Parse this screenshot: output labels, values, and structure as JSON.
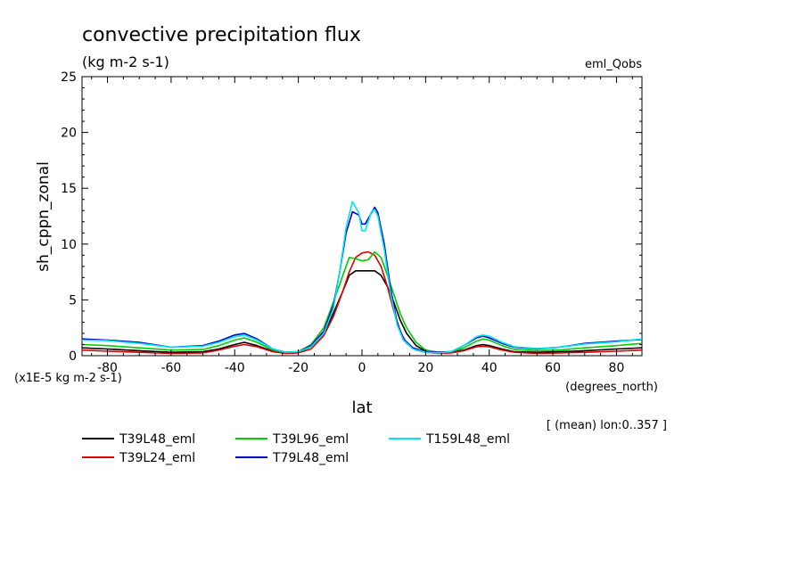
{
  "chart_data": {
    "type": "line",
    "title": "convective precipitation flux",
    "subtitle": "(kg m-2 s-1)",
    "experiment_label": "eml_Qobs",
    "ylabel": "sh_cppn_zonal",
    "xlabel": "lat",
    "x_units": "(degrees_north)",
    "y_scale_note": "(x1E-5 kg m-2 s-1)",
    "averaging_note": "[ (mean) lon:0..357 ]",
    "xlim": [
      -88,
      88
    ],
    "ylim": [
      0,
      25
    ],
    "x_ticks": [
      -80,
      -60,
      -40,
      -20,
      0,
      20,
      40,
      60,
      80
    ],
    "y_ticks": [
      0,
      5,
      10,
      15,
      20,
      25
    ],
    "x_tick_labels": [
      "-80",
      "-60",
      "-40",
      "-20",
      "0",
      "20",
      "40",
      "60",
      "80"
    ],
    "y_tick_labels": [
      "0",
      "5",
      "10",
      "15",
      "20",
      "25"
    ],
    "grid": false,
    "legend_position": "bottom",
    "series": [
      {
        "name": "T39L48_eml",
        "color": "#000000",
        "points": [
          [
            -88,
            0.7
          ],
          [
            -80,
            0.6
          ],
          [
            -70,
            0.45
          ],
          [
            -60,
            0.3
          ],
          [
            -50,
            0.35
          ],
          [
            -45,
            0.6
          ],
          [
            -40,
            1.0
          ],
          [
            -37,
            1.2
          ],
          [
            -33,
            0.9
          ],
          [
            -28,
            0.4
          ],
          [
            -24,
            0.25
          ],
          [
            -20,
            0.3
          ],
          [
            -16,
            0.8
          ],
          [
            -12,
            2.0
          ],
          [
            -9,
            3.8
          ],
          [
            -6,
            5.8
          ],
          [
            -4,
            7.2
          ],
          [
            -2,
            7.6
          ],
          [
            0,
            7.6
          ],
          [
            2,
            7.6
          ],
          [
            4,
            7.6
          ],
          [
            6,
            7.2
          ],
          [
            8,
            6.2
          ],
          [
            10,
            4.8
          ],
          [
            12,
            3.2
          ],
          [
            14,
            2.0
          ],
          [
            17,
            0.9
          ],
          [
            20,
            0.4
          ],
          [
            24,
            0.25
          ],
          [
            28,
            0.3
          ],
          [
            32,
            0.5
          ],
          [
            36,
            0.9
          ],
          [
            38,
            1.0
          ],
          [
            40,
            0.9
          ],
          [
            44,
            0.6
          ],
          [
            48,
            0.35
          ],
          [
            55,
            0.3
          ],
          [
            62,
            0.35
          ],
          [
            70,
            0.45
          ],
          [
            80,
            0.6
          ],
          [
            88,
            0.7
          ]
        ]
      },
      {
        "name": "T39L24_eml",
        "color": "#dd0000",
        "points": [
          [
            -88,
            0.5
          ],
          [
            -80,
            0.4
          ],
          [
            -70,
            0.3
          ],
          [
            -60,
            0.2
          ],
          [
            -50,
            0.25
          ],
          [
            -45,
            0.5
          ],
          [
            -40,
            0.85
          ],
          [
            -37,
            1.0
          ],
          [
            -33,
            0.8
          ],
          [
            -28,
            0.35
          ],
          [
            -24,
            0.2
          ],
          [
            -20,
            0.25
          ],
          [
            -16,
            0.6
          ],
          [
            -12,
            1.8
          ],
          [
            -9,
            3.5
          ],
          [
            -6,
            5.8
          ],
          [
            -4,
            7.5
          ],
          [
            -2,
            8.8
          ],
          [
            0,
            9.2
          ],
          [
            2,
            9.3
          ],
          [
            4,
            9.0
          ],
          [
            6,
            8.0
          ],
          [
            8,
            6.2
          ],
          [
            10,
            4.0
          ],
          [
            12,
            2.2
          ],
          [
            14,
            1.1
          ],
          [
            17,
            0.5
          ],
          [
            20,
            0.3
          ],
          [
            24,
            0.2
          ],
          [
            28,
            0.25
          ],
          [
            32,
            0.45
          ],
          [
            36,
            0.8
          ],
          [
            38,
            0.85
          ],
          [
            40,
            0.8
          ],
          [
            44,
            0.5
          ],
          [
            48,
            0.3
          ],
          [
            55,
            0.2
          ],
          [
            62,
            0.25
          ],
          [
            70,
            0.3
          ],
          [
            80,
            0.4
          ],
          [
            88,
            0.5
          ]
        ]
      },
      {
        "name": "T39L96_eml",
        "color": "#00cc00",
        "points": [
          [
            -88,
            1.0
          ],
          [
            -80,
            0.9
          ],
          [
            -70,
            0.7
          ],
          [
            -60,
            0.5
          ],
          [
            -50,
            0.55
          ],
          [
            -45,
            0.9
          ],
          [
            -40,
            1.4
          ],
          [
            -37,
            1.6
          ],
          [
            -33,
            1.2
          ],
          [
            -28,
            0.5
          ],
          [
            -24,
            0.3
          ],
          [
            -20,
            0.35
          ],
          [
            -16,
            1.0
          ],
          [
            -12,
            2.5
          ],
          [
            -9,
            4.8
          ],
          [
            -6,
            7.2
          ],
          [
            -4,
            8.8
          ],
          [
            -2,
            8.7
          ],
          [
            0,
            8.5
          ],
          [
            2,
            8.6
          ],
          [
            4,
            9.3
          ],
          [
            6,
            8.8
          ],
          [
            8,
            7.2
          ],
          [
            10,
            5.5
          ],
          [
            12,
            3.8
          ],
          [
            14,
            2.5
          ],
          [
            17,
            1.2
          ],
          [
            20,
            0.5
          ],
          [
            24,
            0.3
          ],
          [
            28,
            0.35
          ],
          [
            32,
            0.7
          ],
          [
            36,
            1.3
          ],
          [
            38,
            1.5
          ],
          [
            40,
            1.4
          ],
          [
            44,
            0.9
          ],
          [
            48,
            0.55
          ],
          [
            55,
            0.45
          ],
          [
            62,
            0.5
          ],
          [
            70,
            0.7
          ],
          [
            80,
            0.9
          ],
          [
            88,
            1.1
          ]
        ]
      },
      {
        "name": "T79L48_eml",
        "color": "#0000cc",
        "points": [
          [
            -88,
            1.5
          ],
          [
            -80,
            1.4
          ],
          [
            -70,
            1.2
          ],
          [
            -60,
            0.75
          ],
          [
            -50,
            0.9
          ],
          [
            -45,
            1.3
          ],
          [
            -40,
            1.85
          ],
          [
            -37,
            2.0
          ],
          [
            -33,
            1.5
          ],
          [
            -28,
            0.6
          ],
          [
            -24,
            0.3
          ],
          [
            -20,
            0.35
          ],
          [
            -16,
            0.9
          ],
          [
            -12,
            2.2
          ],
          [
            -9,
            4.5
          ],
          [
            -7,
            7.5
          ],
          [
            -5,
            11.0
          ],
          [
            -3,
            12.9
          ],
          [
            -1,
            12.6
          ],
          [
            0,
            11.8
          ],
          [
            1,
            11.8
          ],
          [
            3,
            12.8
          ],
          [
            4,
            13.3
          ],
          [
            5,
            12.8
          ],
          [
            7,
            10.0
          ],
          [
            9,
            6.0
          ],
          [
            11,
            3.0
          ],
          [
            13,
            1.5
          ],
          [
            16,
            0.7
          ],
          [
            20,
            0.35
          ],
          [
            24,
            0.3
          ],
          [
            28,
            0.35
          ],
          [
            32,
            0.9
          ],
          [
            36,
            1.6
          ],
          [
            38,
            1.75
          ],
          [
            40,
            1.6
          ],
          [
            44,
            1.1
          ],
          [
            48,
            0.75
          ],
          [
            55,
            0.6
          ],
          [
            62,
            0.75
          ],
          [
            70,
            1.1
          ],
          [
            80,
            1.3
          ],
          [
            88,
            1.45
          ]
        ]
      },
      {
        "name": "T159L48_eml",
        "color": "#00e5ee",
        "points": [
          [
            -88,
            1.4
          ],
          [
            -80,
            1.35
          ],
          [
            -70,
            1.1
          ],
          [
            -60,
            0.75
          ],
          [
            -50,
            0.85
          ],
          [
            -45,
            1.2
          ],
          [
            -40,
            1.7
          ],
          [
            -37,
            1.85
          ],
          [
            -33,
            1.4
          ],
          [
            -28,
            0.6
          ],
          [
            -24,
            0.3
          ],
          [
            -20,
            0.35
          ],
          [
            -16,
            0.8
          ],
          [
            -12,
            2.0
          ],
          [
            -9,
            4.2
          ],
          [
            -7,
            7.5
          ],
          [
            -5,
            11.5
          ],
          [
            -3,
            13.8
          ],
          [
            -1,
            12.8
          ],
          [
            0,
            11.2
          ],
          [
            1,
            11.2
          ],
          [
            3,
            12.9
          ],
          [
            4,
            13.1
          ],
          [
            5,
            12.5
          ],
          [
            7,
            9.5
          ],
          [
            9,
            5.5
          ],
          [
            11,
            2.8
          ],
          [
            13,
            1.4
          ],
          [
            16,
            0.6
          ],
          [
            20,
            0.3
          ],
          [
            24,
            0.25
          ],
          [
            28,
            0.35
          ],
          [
            32,
            0.9
          ],
          [
            36,
            1.7
          ],
          [
            38,
            1.85
          ],
          [
            40,
            1.75
          ],
          [
            44,
            1.2
          ],
          [
            48,
            0.8
          ],
          [
            55,
            0.65
          ],
          [
            62,
            0.75
          ],
          [
            70,
            1.05
          ],
          [
            80,
            1.25
          ],
          [
            88,
            1.5
          ]
        ]
      }
    ]
  }
}
